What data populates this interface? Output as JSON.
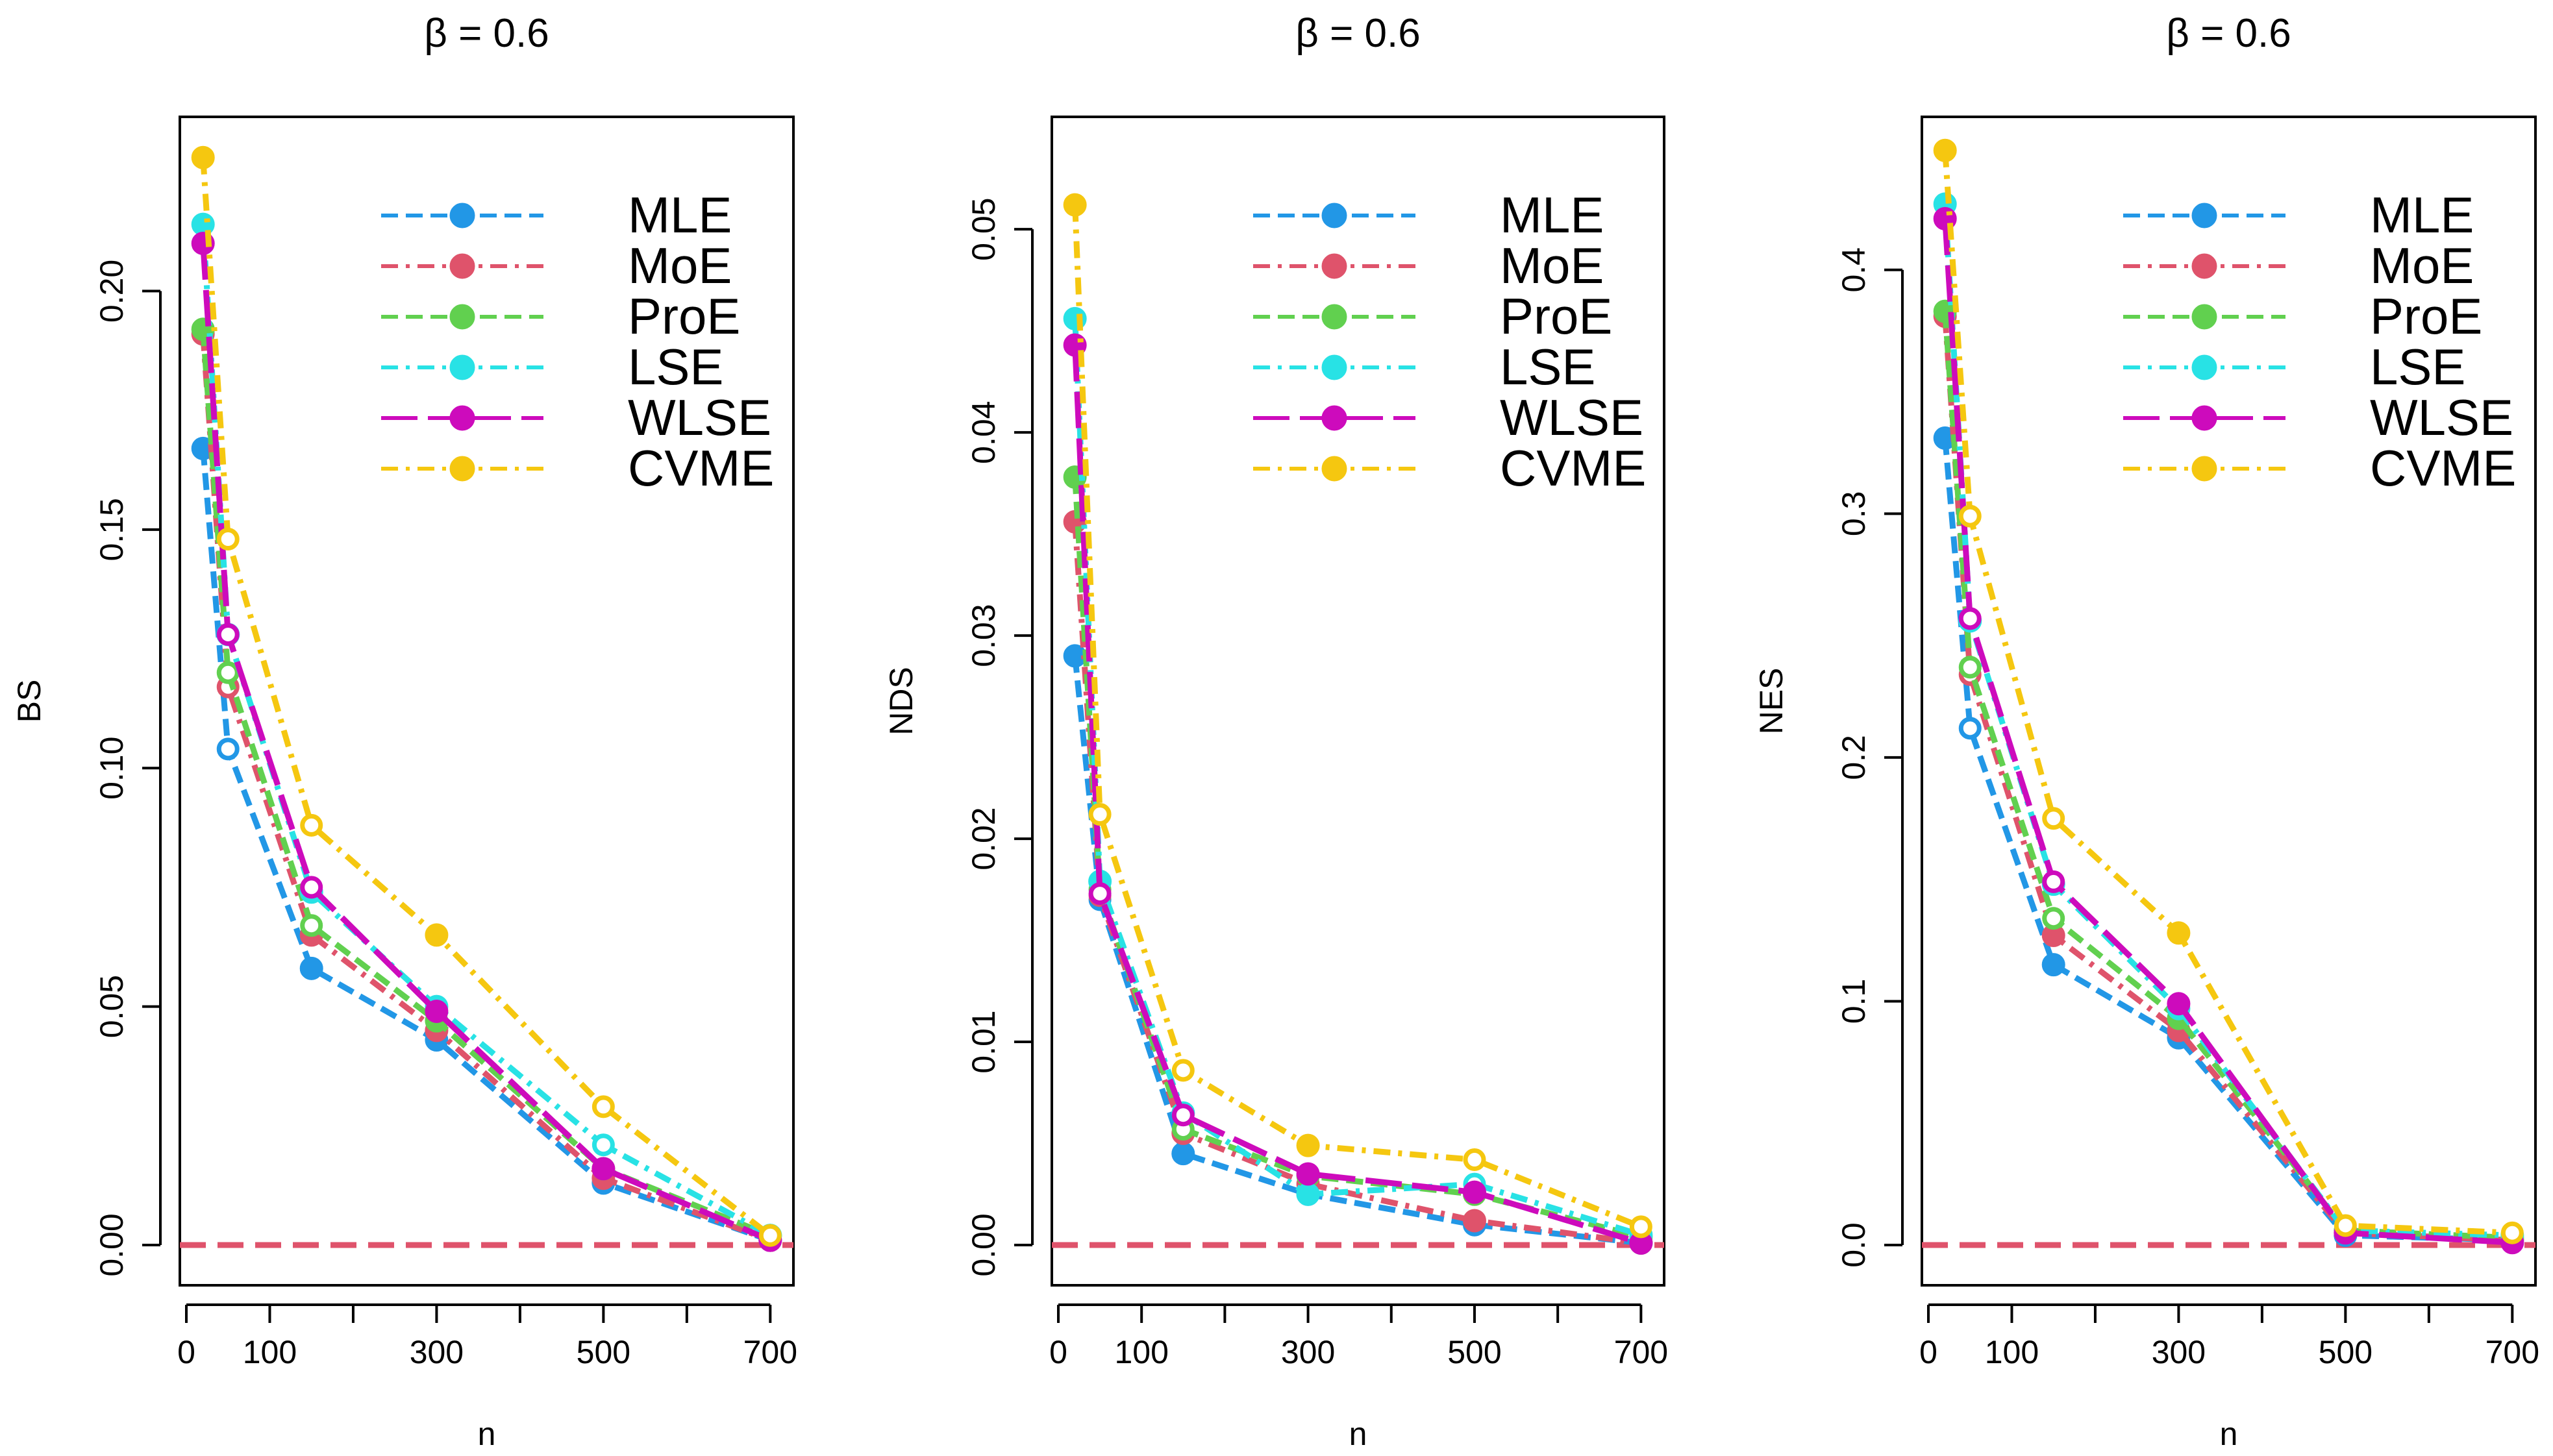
{
  "colors": {
    "MLE": "#2297E6",
    "MoE": "#DF536B",
    "ProE": "#61D04F",
    "LSE": "#28E2E5",
    "WLSE": "#CD0BBC",
    "CVME": "#F5C710",
    "reference": "#DF536B"
  },
  "chart_data": [
    {
      "type": "line",
      "title": "β = 0.6",
      "xlabel": "n",
      "ylabel": "BS",
      "xlim": [
        0,
        720
      ],
      "ylim": [
        0,
        0.23
      ],
      "x_ticks": [
        0,
        100,
        200,
        300,
        400,
        500,
        600,
        700
      ],
      "x_tick_labels": [
        "0",
        "100",
        "",
        "300",
        "",
        "500",
        "",
        "700"
      ],
      "y_ticks": [
        0,
        0.05,
        0.1,
        0.15,
        0.2
      ],
      "y_tick_labels": [
        "0.00",
        "0.05",
        "0.10",
        "0.15",
        "0.20"
      ],
      "reference_line": 0,
      "legend_position": "top-right",
      "x": [
        20,
        50,
        150,
        300,
        500,
        700
      ],
      "series": [
        {
          "name": "MLE",
          "values": [
            0.167,
            0.104,
            0.058,
            0.043,
            0.013,
            0.001
          ]
        },
        {
          "name": "MoE",
          "values": [
            0.191,
            0.117,
            0.065,
            0.045,
            0.014,
            0.001
          ]
        },
        {
          "name": "ProE",
          "values": [
            0.192,
            0.12,
            0.067,
            0.047,
            0.016,
            0.002
          ]
        },
        {
          "name": "LSE",
          "values": [
            0.214,
            0.128,
            0.074,
            0.05,
            0.021,
            0.002
          ]
        },
        {
          "name": "WLSE",
          "values": [
            0.21,
            0.128,
            0.075,
            0.049,
            0.016,
            0.001
          ]
        },
        {
          "name": "CVME",
          "values": [
            0.228,
            0.148,
            0.088,
            0.065,
            0.029,
            0.002
          ]
        }
      ]
    },
    {
      "type": "line",
      "title": "β = 0.6",
      "xlabel": "n",
      "ylabel": "NDS",
      "xlim": [
        0,
        720
      ],
      "ylim": [
        0,
        0.054
      ],
      "x_ticks": [
        0,
        100,
        200,
        300,
        400,
        500,
        600,
        700
      ],
      "x_tick_labels": [
        "0",
        "100",
        "",
        "300",
        "",
        "500",
        "",
        "700"
      ],
      "y_ticks": [
        0,
        0.01,
        0.02,
        0.03,
        0.04,
        0.05
      ],
      "y_tick_labels": [
        "0.00",
        "0.01",
        "0.02",
        "0.03",
        "0.04",
        "0.05"
      ],
      "reference_line": 0,
      "legend_position": "top-right",
      "x": [
        20,
        50,
        150,
        300,
        500,
        700
      ],
      "series": [
        {
          "name": "MLE",
          "values": [
            0.029,
            0.017,
            0.0045,
            0.0025,
            0.001,
            0.0001
          ]
        },
        {
          "name": "MoE",
          "values": [
            0.0356,
            0.0172,
            0.0055,
            0.003,
            0.0012,
            0.0001
          ]
        },
        {
          "name": "ProE",
          "values": [
            0.0378,
            0.0175,
            0.0057,
            0.0034,
            0.0025,
            0.0004
          ]
        },
        {
          "name": "LSE",
          "values": [
            0.0456,
            0.0179,
            0.0065,
            0.0025,
            0.003,
            0.0005
          ]
        },
        {
          "name": "WLSE",
          "values": [
            0.0443,
            0.0173,
            0.0064,
            0.0035,
            0.0026,
            0.0001
          ]
        },
        {
          "name": "CVME",
          "values": [
            0.0512,
            0.0212,
            0.0086,
            0.0049,
            0.0042,
            0.0009
          ]
        }
      ]
    },
    {
      "type": "line",
      "title": "β = 0.6",
      "xlabel": "n",
      "ylabel": "NES",
      "xlim": [
        0,
        720
      ],
      "ylim": [
        0,
        0.45
      ],
      "x_ticks": [
        0,
        100,
        200,
        300,
        400,
        500,
        600,
        700
      ],
      "x_tick_labels": [
        "0",
        "100",
        "",
        "300",
        "",
        "500",
        "",
        "700"
      ],
      "y_ticks": [
        0,
        0.1,
        0.2,
        0.3,
        0.4
      ],
      "y_tick_labels": [
        "0.0",
        "0.1",
        "0.2",
        "0.3",
        "0.4"
      ],
      "reference_line": 0,
      "legend_position": "top-right",
      "x": [
        20,
        50,
        150,
        300,
        500,
        700
      ],
      "series": [
        {
          "name": "MLE",
          "values": [
            0.331,
            0.212,
            0.115,
            0.085,
            0.004,
            0.002
          ]
        },
        {
          "name": "MoE",
          "values": [
            0.381,
            0.234,
            0.127,
            0.088,
            0.005,
            0.002
          ]
        },
        {
          "name": "ProE",
          "values": [
            0.383,
            0.237,
            0.134,
            0.093,
            0.006,
            0.003
          ]
        },
        {
          "name": "LSE",
          "values": [
            0.427,
            0.256,
            0.148,
            0.097,
            0.006,
            0.004
          ]
        },
        {
          "name": "WLSE",
          "values": [
            0.421,
            0.257,
            0.149,
            0.099,
            0.005,
            0.001
          ]
        },
        {
          "name": "CVME",
          "values": [
            0.449,
            0.299,
            0.175,
            0.128,
            0.008,
            0.005
          ]
        }
      ]
    }
  ]
}
